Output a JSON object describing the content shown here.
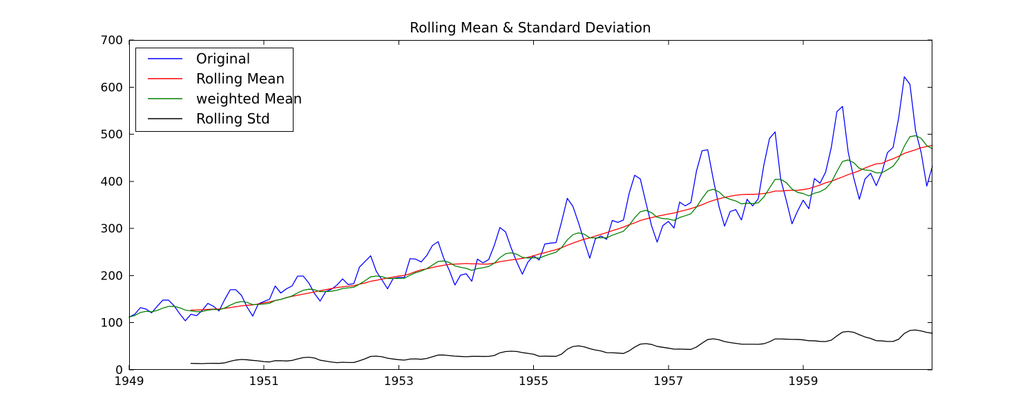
{
  "chart_data": {
    "type": "line",
    "title": "Rolling Mean & Standard Deviation",
    "background_color": "#ffffff",
    "axes_color": "#000000",
    "grid": false,
    "legend_position": "upper left",
    "ylim": [
      0,
      700
    ],
    "yticks": [
      0,
      100,
      200,
      300,
      400,
      500,
      600,
      700
    ],
    "xticks": [
      {
        "label": "1949",
        "month": 0
      },
      {
        "label": "1951",
        "month": 24
      },
      {
        "label": "1953",
        "month": 48
      },
      {
        "label": "1955",
        "month": 72
      },
      {
        "label": "1957",
        "month": 96
      },
      {
        "label": "1959",
        "month": 120
      }
    ],
    "x_start": "1949-01",
    "x_end": "1960-12",
    "x_points": 144,
    "values": [
      112,
      118,
      132,
      129,
      121,
      135,
      148,
      148,
      136,
      119,
      104,
      118,
      115,
      126,
      141,
      135,
      125,
      149,
      170,
      170,
      158,
      133,
      114,
      140,
      145,
      150,
      178,
      163,
      172,
      178,
      199,
      199,
      184,
      162,
      146,
      166,
      171,
      180,
      193,
      181,
      183,
      218,
      230,
      242,
      209,
      191,
      172,
      194,
      196,
      196,
      236,
      235,
      229,
      243,
      264,
      272,
      237,
      211,
      180,
      201,
      204,
      188,
      235,
      227,
      234,
      264,
      302,
      293,
      259,
      229,
      203,
      229,
      242,
      233,
      267,
      269,
      270,
      315,
      364,
      347,
      312,
      274,
      237,
      278,
      284,
      277,
      317,
      313,
      318,
      374,
      413,
      405,
      355,
      306,
      271,
      306,
      315,
      301,
      356,
      348,
      355,
      422,
      465,
      467,
      404,
      347,
      305,
      336,
      340,
      318,
      362,
      348,
      363,
      435,
      491,
      505,
      404,
      359,
      310,
      337,
      360,
      342,
      406,
      396,
      420,
      472,
      548,
      559,
      463,
      407,
      362,
      405,
      417,
      391,
      419,
      461,
      472,
      535,
      622,
      606,
      508,
      461,
      390,
      432
    ],
    "series": [
      {
        "name": "Original",
        "color": "#0000ff",
        "derive": "raw"
      },
      {
        "name": "Rolling Mean",
        "color": "#ff0000",
        "derive": "rolling_mean",
        "window": 12
      },
      {
        "name": "weighted Mean",
        "color": "#008000",
        "derive": "ewm",
        "span": 12
      },
      {
        "name": "Rolling Std",
        "color": "#000000",
        "derive": "rolling_std",
        "window": 12
      }
    ]
  }
}
